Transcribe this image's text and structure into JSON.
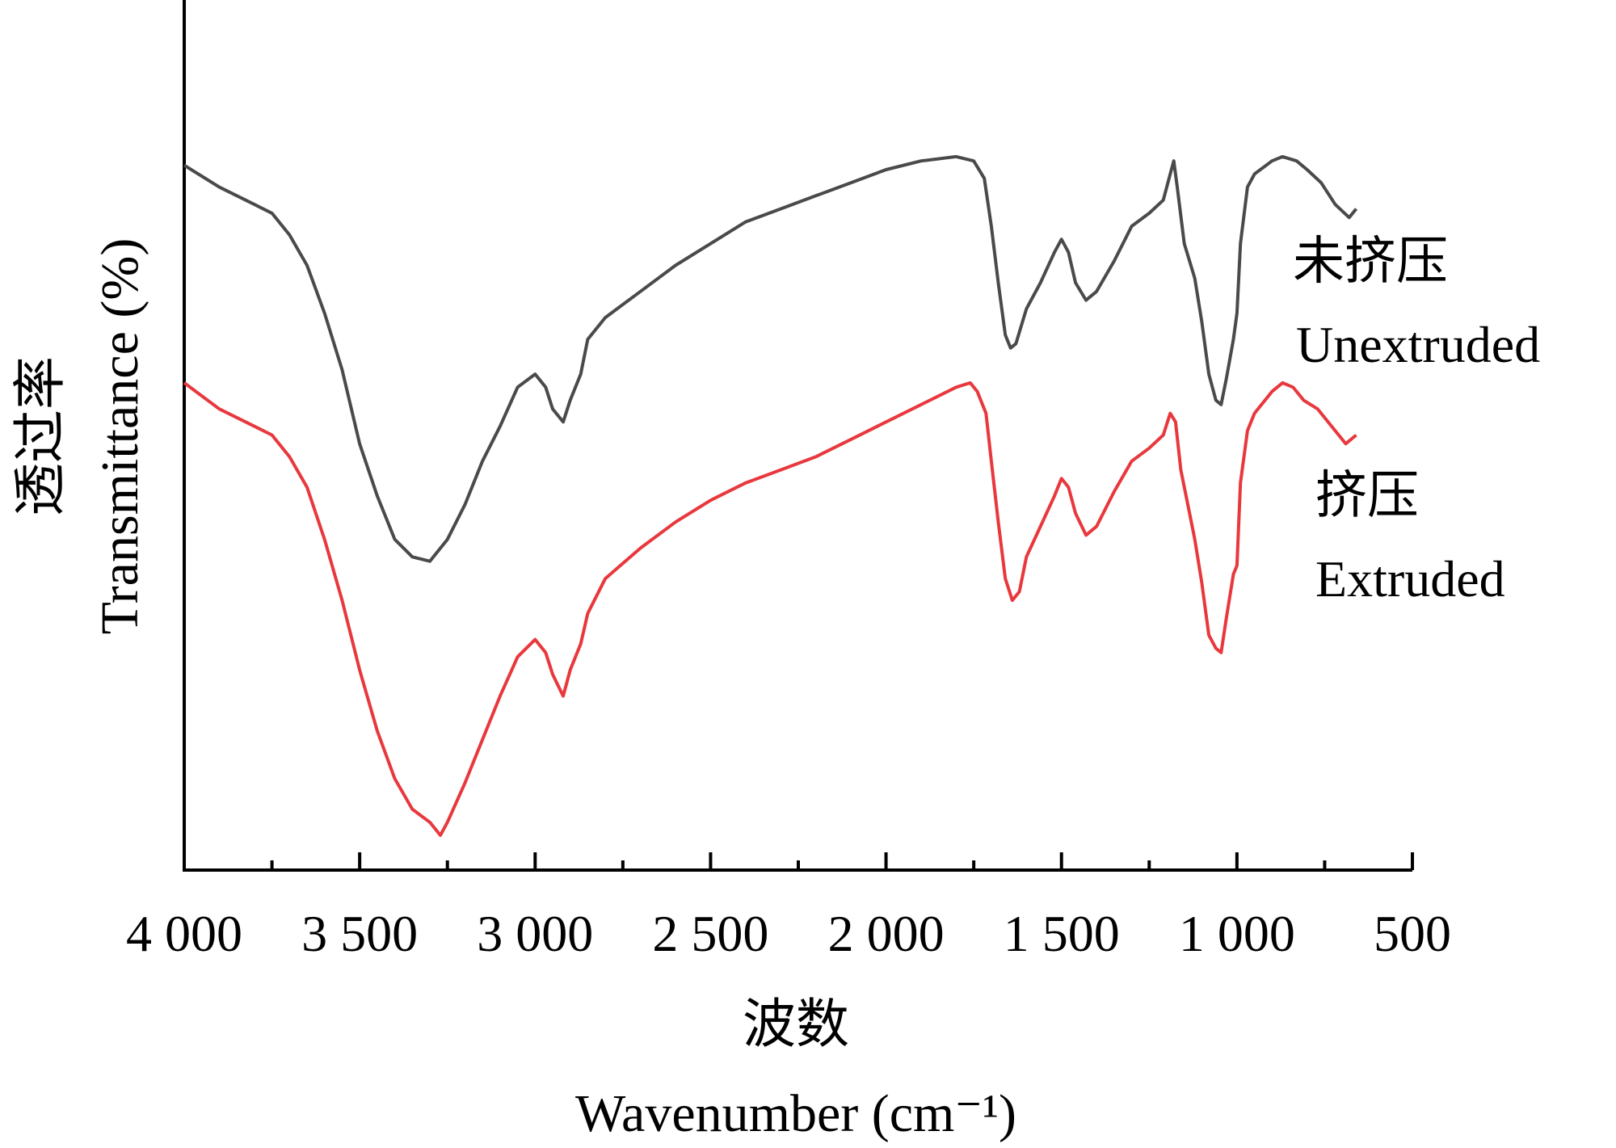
{
  "chart_data": {
    "type": "line",
    "title": "",
    "xlabel": "Wavenumber (cm⁻¹)",
    "xlabel_cn": "波数",
    "ylabel": "Transmittance (%)",
    "ylabel_cn": "透过率",
    "x_reversed": true,
    "xlim": [
      4000,
      500
    ],
    "ylim": [
      0,
      100
    ],
    "y_tick_labels_shown": false,
    "grid": false,
    "x_ticks": [
      {
        "value": 4000,
        "label": "4 000"
      },
      {
        "value": 3500,
        "label": "3 500"
      },
      {
        "value": 3000,
        "label": "3 000"
      },
      {
        "value": 2500,
        "label": "2 500"
      },
      {
        "value": 2000,
        "label": "2 000"
      },
      {
        "value": 1500,
        "label": "1 500"
      },
      {
        "value": 1000,
        "label": "1 000"
      },
      {
        "value": 500,
        "label": "500"
      }
    ],
    "x_minor_ticks": [
      3750,
      3250,
      2750,
      2250,
      1750,
      1250,
      750
    ],
    "series": [
      {
        "name": "Unextruded",
        "name_cn": "未挤压",
        "color": "#4a4a4a",
        "points": [
          [
            4000,
            81
          ],
          [
            3900,
            78.5
          ],
          [
            3800,
            76.5
          ],
          [
            3750,
            75.5
          ],
          [
            3700,
            73
          ],
          [
            3650,
            69.5
          ],
          [
            3600,
            64
          ],
          [
            3550,
            57.5
          ],
          [
            3500,
            49
          ],
          [
            3450,
            43
          ],
          [
            3400,
            38
          ],
          [
            3350,
            36
          ],
          [
            3300,
            35.5
          ],
          [
            3250,
            38
          ],
          [
            3200,
            42
          ],
          [
            3150,
            47
          ],
          [
            3100,
            51
          ],
          [
            3050,
            55.5
          ],
          [
            3000,
            57
          ],
          [
            2970,
            55.5
          ],
          [
            2950,
            53
          ],
          [
            2920,
            51.5
          ],
          [
            2900,
            54
          ],
          [
            2870,
            57
          ],
          [
            2850,
            61
          ],
          [
            2800,
            63.5
          ],
          [
            2700,
            66.5
          ],
          [
            2600,
            69.5
          ],
          [
            2500,
            72
          ],
          [
            2400,
            74.5
          ],
          [
            2300,
            76
          ],
          [
            2200,
            77.5
          ],
          [
            2100,
            79
          ],
          [
            2000,
            80.5
          ],
          [
            1900,
            81.5
          ],
          [
            1800,
            82
          ],
          [
            1750,
            81.5
          ],
          [
            1720,
            79.5
          ],
          [
            1700,
            74
          ],
          [
            1680,
            67.5
          ],
          [
            1660,
            61.5
          ],
          [
            1645,
            60
          ],
          [
            1630,
            60.5
          ],
          [
            1600,
            64.5
          ],
          [
            1560,
            67.5
          ],
          [
            1520,
            71
          ],
          [
            1500,
            72.5
          ],
          [
            1480,
            71
          ],
          [
            1460,
            67.5
          ],
          [
            1430,
            65.5
          ],
          [
            1400,
            66.5
          ],
          [
            1350,
            70
          ],
          [
            1300,
            74
          ],
          [
            1250,
            75.5
          ],
          [
            1210,
            77
          ],
          [
            1190,
            80
          ],
          [
            1180,
            81.5
          ],
          [
            1170,
            78.5
          ],
          [
            1150,
            72
          ],
          [
            1120,
            68
          ],
          [
            1100,
            63
          ],
          [
            1080,
            57
          ],
          [
            1060,
            54
          ],
          [
            1045,
            53.5
          ],
          [
            1030,
            56.5
          ],
          [
            1010,
            61
          ],
          [
            1000,
            64
          ],
          [
            990,
            72
          ],
          [
            970,
            78.5
          ],
          [
            950,
            80
          ],
          [
            900,
            81.5
          ],
          [
            870,
            82
          ],
          [
            830,
            81.5
          ],
          [
            800,
            80.5
          ],
          [
            760,
            79
          ],
          [
            720,
            76.5
          ],
          [
            680,
            75
          ],
          [
            660,
            76
          ]
        ]
      },
      {
        "name": "Extruded",
        "name_cn": "挤压",
        "color": "#e8383d",
        "points": [
          [
            4000,
            56
          ],
          [
            3900,
            53
          ],
          [
            3800,
            51
          ],
          [
            3750,
            50
          ],
          [
            3700,
            47.5
          ],
          [
            3650,
            44
          ],
          [
            3600,
            38
          ],
          [
            3550,
            31
          ],
          [
            3500,
            23
          ],
          [
            3450,
            16
          ],
          [
            3400,
            10.5
          ],
          [
            3350,
            7
          ],
          [
            3300,
            5.5
          ],
          [
            3270,
            4
          ],
          [
            3250,
            5.5
          ],
          [
            3200,
            10
          ],
          [
            3150,
            15
          ],
          [
            3100,
            20
          ],
          [
            3050,
            24.5
          ],
          [
            3000,
            26.5
          ],
          [
            2970,
            25
          ],
          [
            2950,
            22.5
          ],
          [
            2920,
            20
          ],
          [
            2900,
            23
          ],
          [
            2870,
            26
          ],
          [
            2850,
            29.5
          ],
          [
            2800,
            33.5
          ],
          [
            2700,
            37
          ],
          [
            2600,
            40
          ],
          [
            2500,
            42.5
          ],
          [
            2400,
            44.5
          ],
          [
            2300,
            46
          ],
          [
            2200,
            47.5
          ],
          [
            2100,
            49.5
          ],
          [
            2000,
            51.5
          ],
          [
            1900,
            53.5
          ],
          [
            1800,
            55.5
          ],
          [
            1760,
            56
          ],
          [
            1740,
            55
          ],
          [
            1715,
            52.5
          ],
          [
            1700,
            47
          ],
          [
            1680,
            40
          ],
          [
            1660,
            33.5
          ],
          [
            1640,
            31
          ],
          [
            1620,
            32
          ],
          [
            1600,
            36
          ],
          [
            1560,
            39.5
          ],
          [
            1520,
            43
          ],
          [
            1500,
            45
          ],
          [
            1480,
            44
          ],
          [
            1460,
            41
          ],
          [
            1430,
            38.5
          ],
          [
            1400,
            39.5
          ],
          [
            1350,
            43.5
          ],
          [
            1300,
            47
          ],
          [
            1250,
            48.5
          ],
          [
            1210,
            50
          ],
          [
            1190,
            52.5
          ],
          [
            1175,
            51.5
          ],
          [
            1160,
            46
          ],
          [
            1140,
            42
          ],
          [
            1120,
            38
          ],
          [
            1100,
            33
          ],
          [
            1080,
            27
          ],
          [
            1060,
            25.5
          ],
          [
            1045,
            25
          ],
          [
            1030,
            29
          ],
          [
            1010,
            34
          ],
          [
            1000,
            35
          ],
          [
            990,
            44.5
          ],
          [
            970,
            50.5
          ],
          [
            950,
            52.5
          ],
          [
            900,
            55
          ],
          [
            870,
            56
          ],
          [
            840,
            55.5
          ],
          [
            810,
            54
          ],
          [
            770,
            53
          ],
          [
            730,
            51
          ],
          [
            690,
            49
          ],
          [
            660,
            50
          ]
        ]
      }
    ]
  }
}
